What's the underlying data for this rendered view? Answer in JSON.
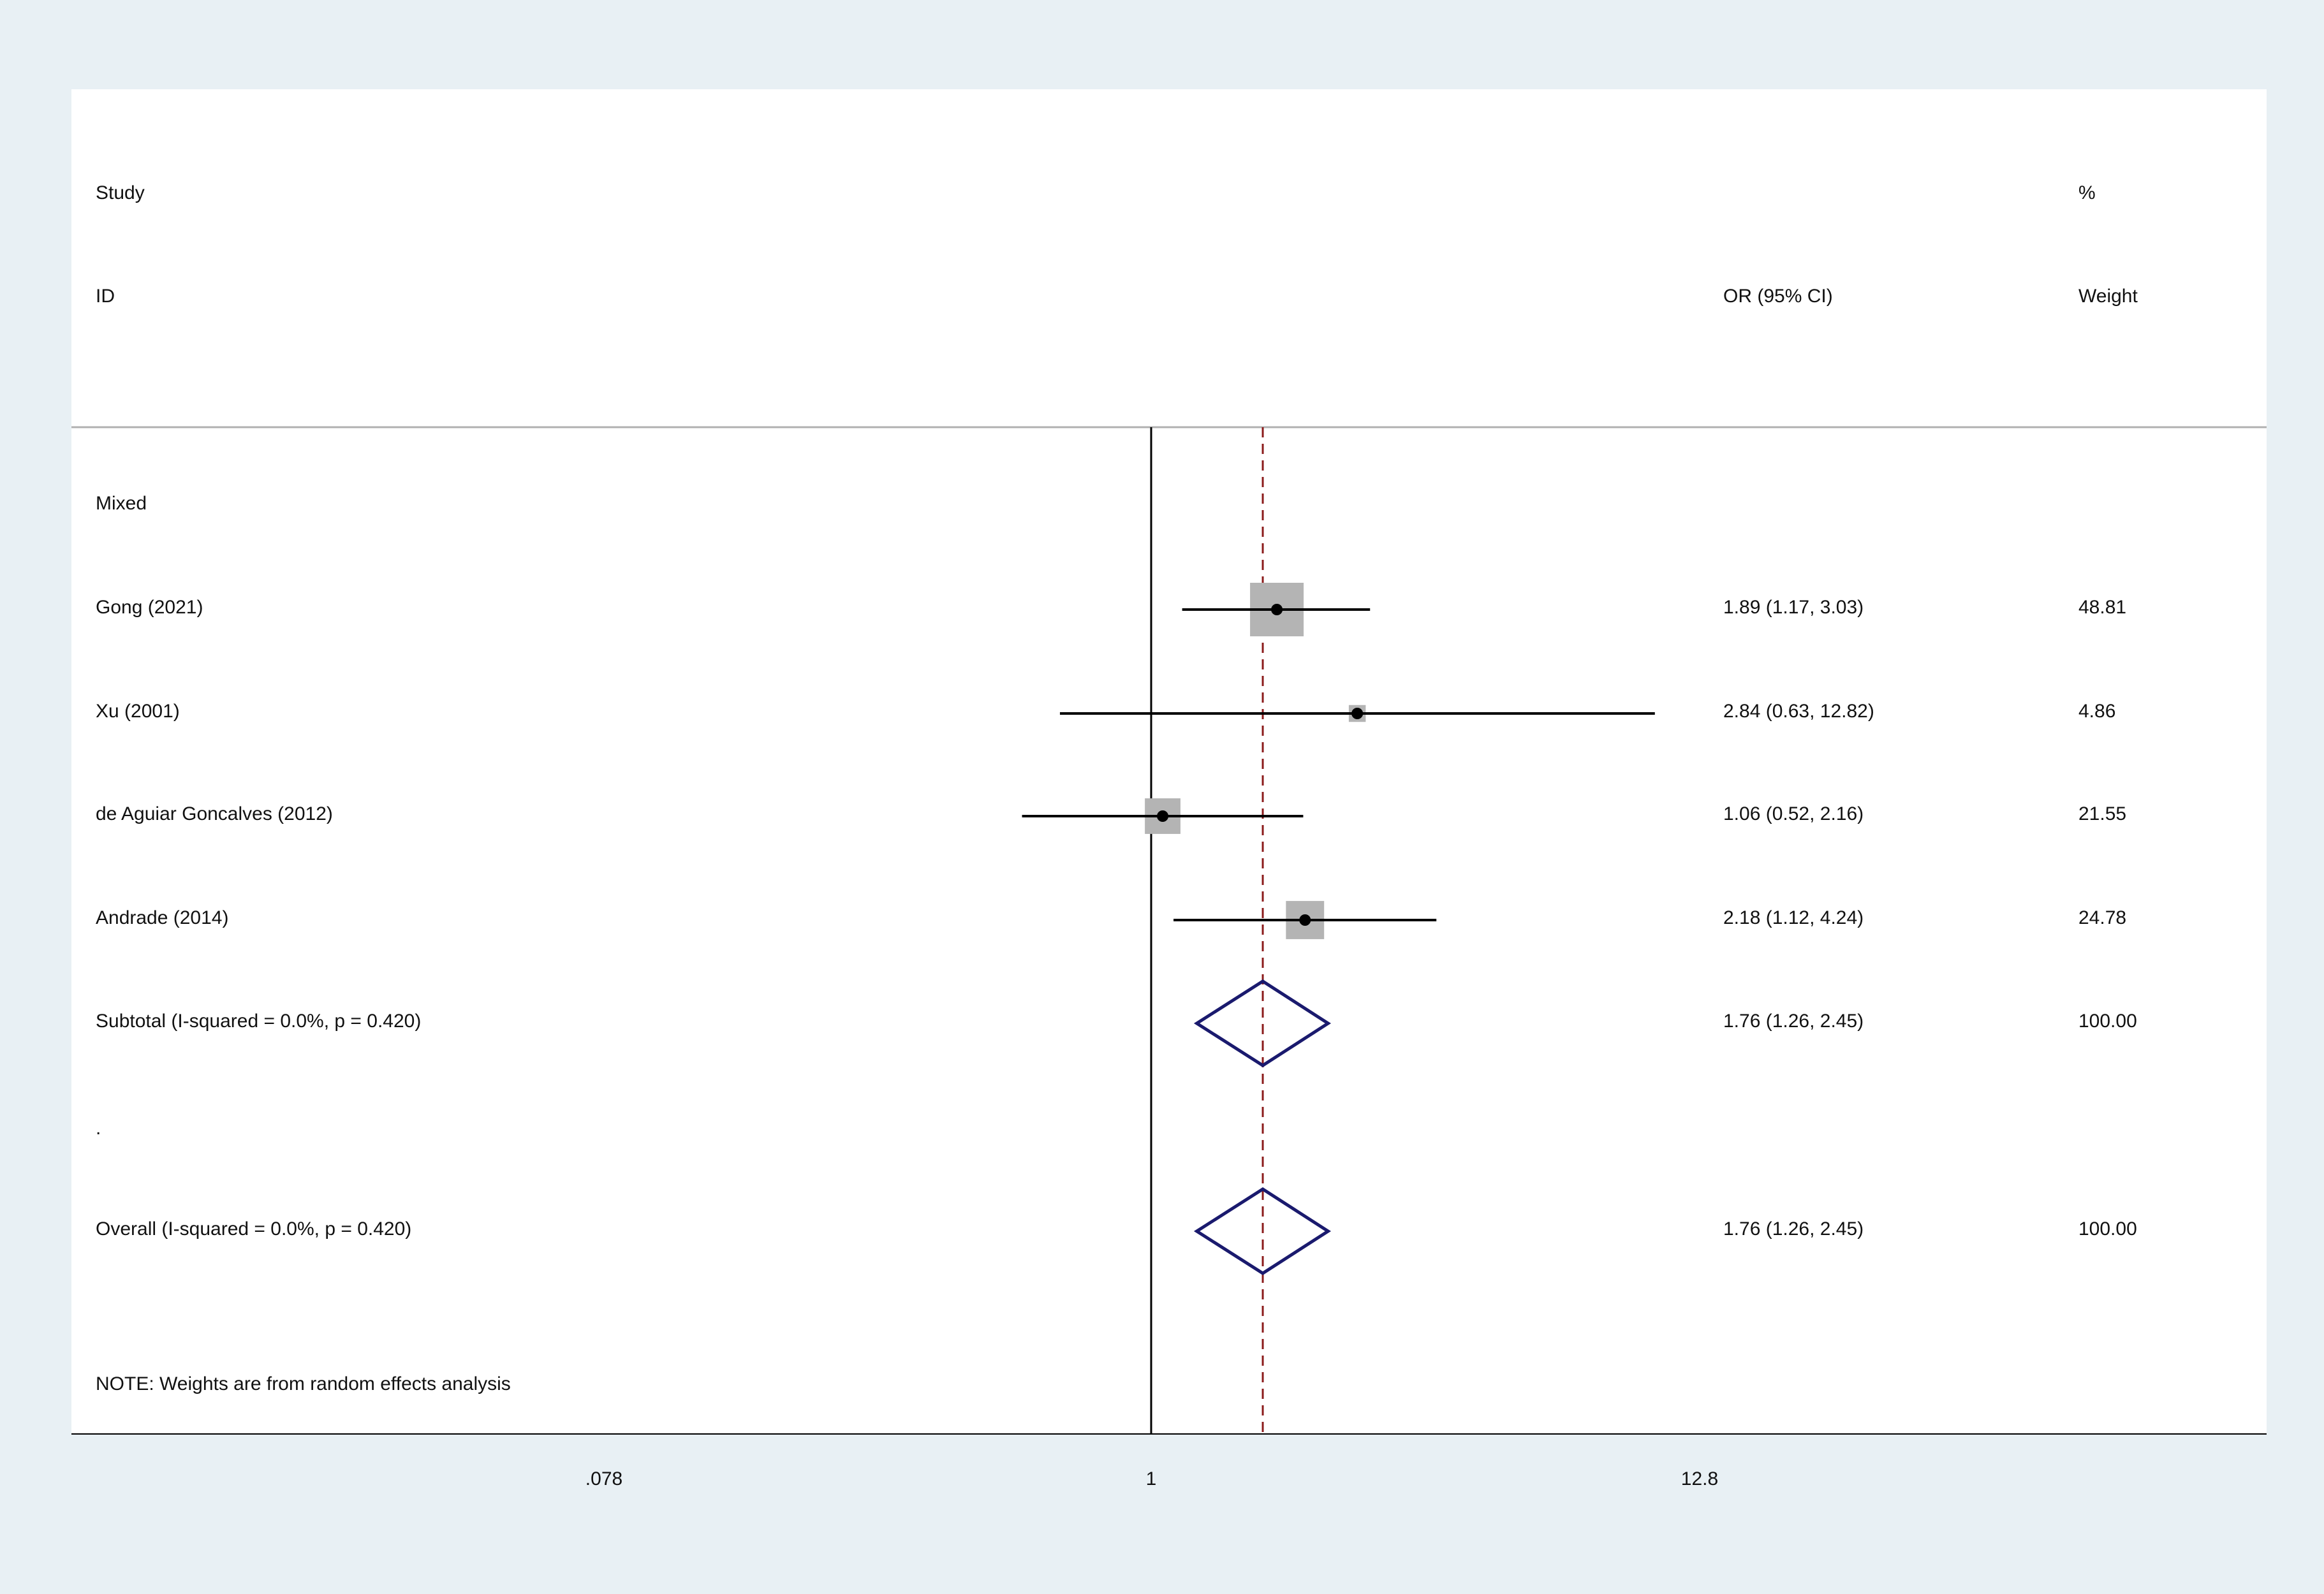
{
  "headers": {
    "study": "Study",
    "id": "ID",
    "or_ci": "OR (95% CI)",
    "pct": "%",
    "weight": "Weight"
  },
  "subgroup_label": "Mixed",
  "spacer_label": ".",
  "note": "NOTE: Weights are from random effects analysis",
  "colors": {
    "background": "#e8f0f4",
    "panel": "#ffffff",
    "marker_box": "#b4b4b4",
    "diamond": "#1a1a6e",
    "null_line": "#000000",
    "overall_line": "#8b1a1a",
    "header_rule": "#b0b0b0"
  },
  "chart_data": {
    "type": "forest",
    "scale": "log",
    "null_value": 1,
    "overall_estimate": 1.76,
    "xlim": [
      0.0625,
      20
    ],
    "x_ticks": [
      {
        "value": 0.078125,
        "label": ".078"
      },
      {
        "value": 1,
        "label": "1"
      },
      {
        "value": 12.8,
        "label": "12.8"
      }
    ],
    "studies": [
      {
        "id": "Gong (2021)",
        "or": 1.89,
        "lower": 1.17,
        "upper": 3.03,
        "text": "1.89 (1.17, 3.03)",
        "weight": 48.81,
        "weight_text": "48.81"
      },
      {
        "id": "Xu (2001)",
        "or": 2.84,
        "lower": 0.63,
        "upper": 12.82,
        "text": "2.84 (0.63, 12.82)",
        "weight": 4.86,
        "weight_text": "4.86"
      },
      {
        "id": "de Aguiar Goncalves (2012)",
        "or": 1.06,
        "lower": 0.52,
        "upper": 2.16,
        "text": "1.06 (0.52, 2.16)",
        "weight": 21.55,
        "weight_text": "21.55"
      },
      {
        "id": "Andrade (2014)",
        "or": 2.18,
        "lower": 1.12,
        "upper": 4.24,
        "text": "2.18 (1.12, 4.24)",
        "weight": 24.78,
        "weight_text": "24.78"
      }
    ],
    "subtotal": {
      "label": "Subtotal  (I-squared = 0.0%, p = 0.420)",
      "or": 1.76,
      "lower": 1.26,
      "upper": 2.45,
      "text": "1.76 (1.26, 2.45)",
      "weight_text": "100.00"
    },
    "overall": {
      "label": "Overall  (I-squared = 0.0%, p = 0.420)",
      "or": 1.76,
      "lower": 1.26,
      "upper": 2.45,
      "text": "1.76 (1.26, 2.45)",
      "weight_text": "100.00"
    }
  }
}
